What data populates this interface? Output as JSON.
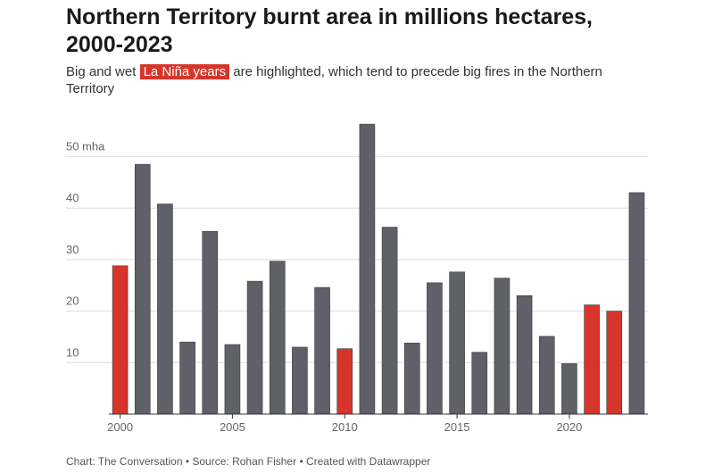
{
  "title": "Northern Territory burnt area in millions hectares, 2000-2023",
  "subtitle": {
    "before": "Big and wet",
    "highlight": "La Niña years",
    "after": "are highlighted, which tend to precede big fires in the Northern Territory"
  },
  "footer": "Chart: The Conversation • Source: Rohan Fisher • Created with Datawrapper",
  "colors": {
    "normal": "#5f6068",
    "highlight": "#d7352a"
  },
  "chart_data": {
    "type": "bar",
    "x": [
      2000,
      2001,
      2002,
      2003,
      2004,
      2005,
      2006,
      2007,
      2008,
      2009,
      2010,
      2011,
      2012,
      2013,
      2014,
      2015,
      2016,
      2017,
      2018,
      2019,
      2020,
      2021,
      2022,
      2023
    ],
    "values": [
      28.8,
      48.5,
      40.8,
      14.0,
      35.5,
      13.5,
      25.8,
      29.7,
      13.0,
      24.6,
      12.7,
      56.3,
      36.3,
      13.8,
      25.5,
      27.6,
      12.0,
      26.4,
      23.0,
      15.1,
      9.8,
      21.2,
      20.0,
      43.0
    ],
    "highlighted": [
      true,
      false,
      false,
      false,
      false,
      false,
      false,
      false,
      false,
      false,
      true,
      false,
      false,
      false,
      false,
      false,
      false,
      false,
      false,
      false,
      false,
      true,
      true,
      false
    ],
    "y_ticks": [
      10,
      20,
      30,
      40,
      50
    ],
    "y_tick_labels": [
      "10",
      "20",
      "30",
      "40",
      "50 mha"
    ],
    "x_ticks": [
      2000,
      2005,
      2010,
      2015,
      2020
    ],
    "ylim": [
      0,
      60
    ],
    "grid": true
  }
}
